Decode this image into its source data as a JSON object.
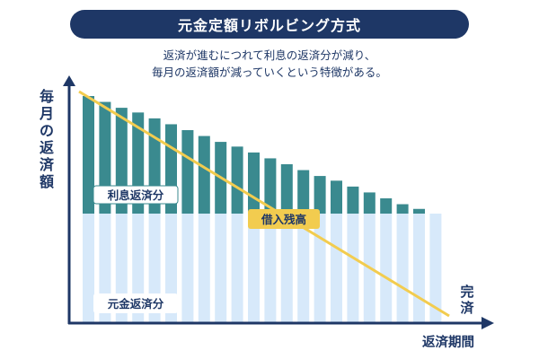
{
  "header": {
    "title": "元金定額リボルビング方式",
    "subtitle_line1": "返済が進むにつれて利息の返済分が減り、",
    "subtitle_line2": "毎月の返済額が減っていくという特徴がある。"
  },
  "colors": {
    "navy": "#1e3766",
    "interest": "#3a8a8f",
    "principal": "#d7e9fa",
    "balance_line": "#f2cc4f",
    "label_bg": "#ffffff"
  },
  "chart_data": {
    "type": "bar",
    "ylabel": "毎月の返済額",
    "xlabel": "返済期間",
    "end_label": "完済",
    "series": [
      {
        "name": "元金返済分",
        "values": [
          1,
          1,
          1,
          1,
          1,
          1,
          1,
          1,
          1,
          1,
          1,
          1,
          1,
          1,
          1,
          1,
          1,
          1,
          1,
          1,
          1,
          1
        ]
      },
      {
        "name": "利息返済分",
        "values": [
          1.0,
          0.95,
          0.9,
          0.86,
          0.81,
          0.76,
          0.71,
          0.66,
          0.61,
          0.57,
          0.52,
          0.47,
          0.42,
          0.37,
          0.32,
          0.28,
          0.23,
          0.18,
          0.13,
          0.08,
          0.04,
          0.0
        ]
      }
    ],
    "balance": {
      "name": "借入残高",
      "start": 1.0,
      "end": 0.0
    },
    "grid": false,
    "legend": "inside"
  }
}
